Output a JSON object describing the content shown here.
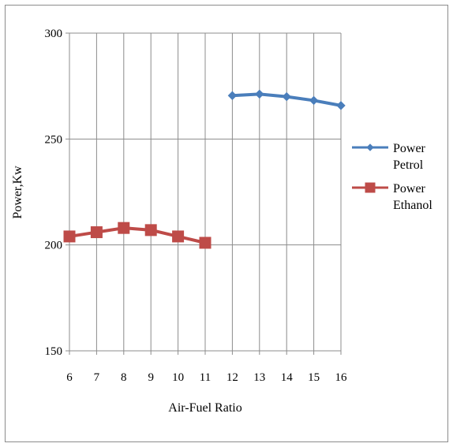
{
  "chart_data": {
    "type": "line",
    "title": "",
    "xlabel": "Air-Fuel Ratio",
    "ylabel": "Power,Kw",
    "x": [
      6,
      7,
      8,
      9,
      10,
      11,
      12,
      13,
      14,
      15,
      16
    ],
    "ylim": [
      150,
      300
    ],
    "yticks": [
      150,
      200,
      250,
      300
    ],
    "grid": true,
    "legend_position": "right",
    "series": [
      {
        "name": "Power Petrol",
        "legend_lines": [
          "Power",
          "Petrol"
        ],
        "marker": "diamond",
        "color": "#4a7ebb",
        "x": [
          12,
          13,
          14,
          15,
          16
        ],
        "values": [
          270.5,
          271.2,
          270,
          268.2,
          265.8
        ]
      },
      {
        "name": "Power Ethanol",
        "legend_lines": [
          "Power",
          "Ethanol"
        ],
        "marker": "square",
        "color": "#be4b48",
        "x": [
          6,
          7,
          8,
          9,
          10,
          11
        ],
        "values": [
          204,
          206,
          208,
          207,
          204,
          201
        ]
      }
    ]
  }
}
